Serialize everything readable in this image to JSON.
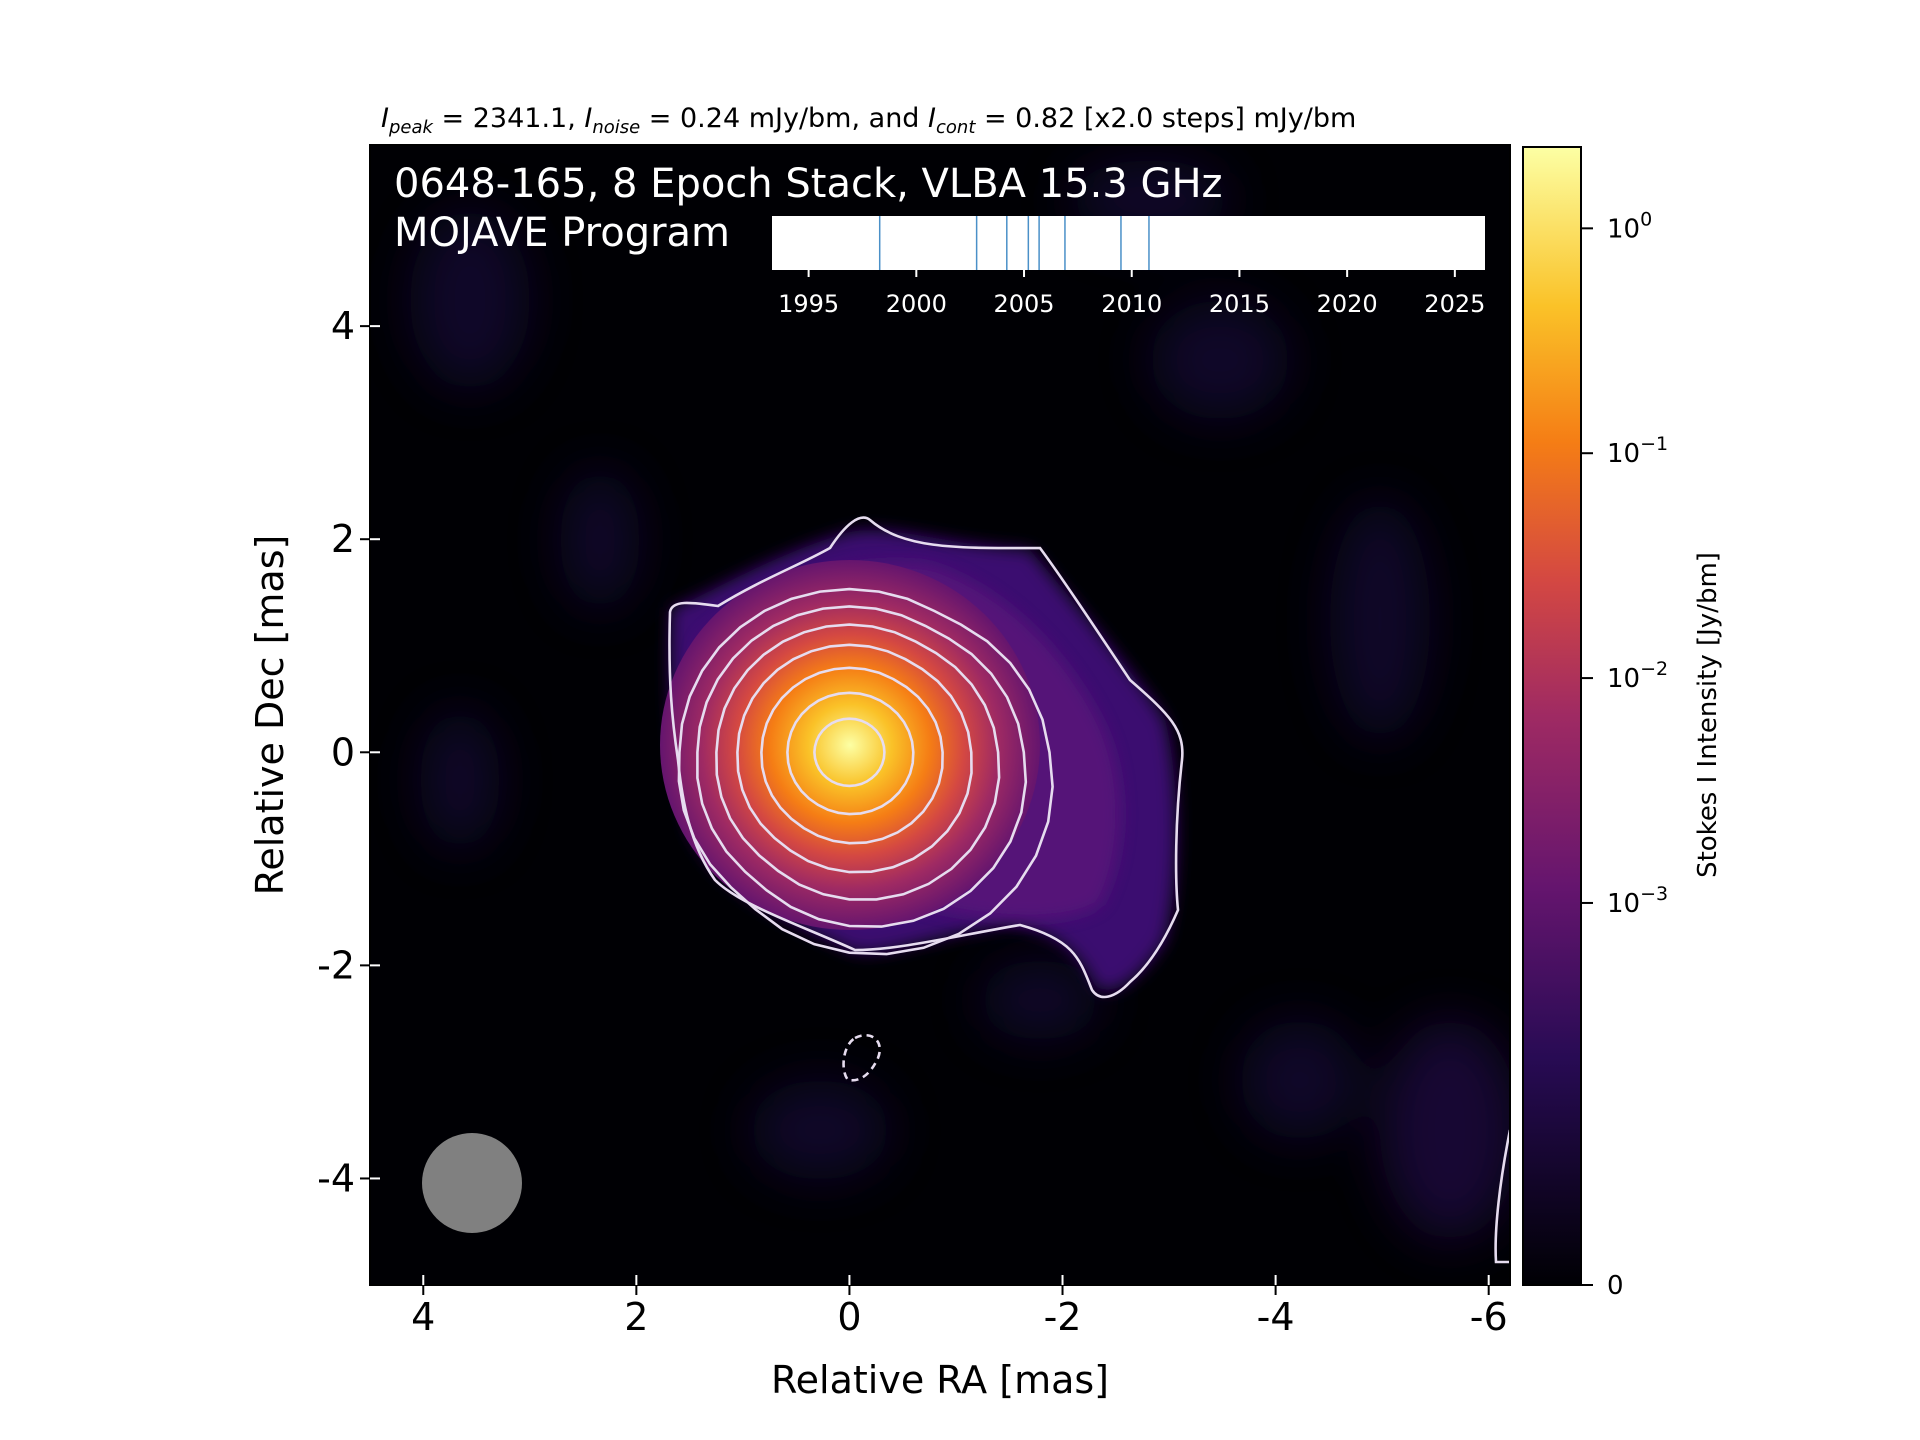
{
  "chart_data": {
    "type": "heatmap",
    "header": {
      "peak_label": "I",
      "peak_sub": "peak",
      "peak_value": " = 2341.1, ",
      "noise_label": "I",
      "noise_sub": "noise",
      "noise_value": " = 0.24 mJy/bm, and ",
      "cont_label": "I",
      "cont_sub": "cont",
      "cont_value": " = 0.82 [x2.0 steps] mJy/bm"
    },
    "title_line1": "0648-165, 8 Epoch Stack, VLBA 15.3 GHz",
    "title_line2": "MOJAVE Program",
    "xlabel": "Relative RA [mas]",
    "ylabel": "Relative Dec [mas]",
    "xlim": [
      4.5,
      -6.2
    ],
    "ylim": [
      -5.0,
      5.7
    ],
    "xticks": [
      4,
      2,
      0,
      -2,
      -4,
      -6
    ],
    "yticks": [
      4,
      2,
      0,
      -2,
      -4
    ],
    "colorbar": {
      "label": "Stokes I Intensity [Jy/bm]",
      "scale": "symlog",
      "ticks": [
        {
          "value": 1,
          "base": "10",
          "exp": "0"
        },
        {
          "value": 0.1,
          "base": "10",
          "exp": "−1"
        },
        {
          "value": 0.01,
          "base": "10",
          "exp": "−2"
        },
        {
          "value": 0.001,
          "base": "10",
          "exp": "−3"
        },
        {
          "value": 0,
          "base": "0",
          "exp": ""
        }
      ]
    },
    "timeline": {
      "xlim": [
        1993.3,
        2026.4
      ],
      "ticks": [
        1995,
        2000,
        2005,
        2010,
        2015,
        2020,
        2025
      ],
      "epochs": [
        1998.3,
        2002.8,
        2004.2,
        2005.2,
        2005.7,
        2006.9,
        2009.5,
        2010.8
      ]
    },
    "peak_mJy_per_beam": 2341.1,
    "noise_mJy_per_beam": 0.24,
    "lowest_contour_mJy_per_beam": 0.82,
    "contour_step_factor": 2.0,
    "beam_shape": "circular",
    "colors": {
      "background": "#000004",
      "contour": "#e6dcef",
      "beam": "#808080"
    }
  }
}
